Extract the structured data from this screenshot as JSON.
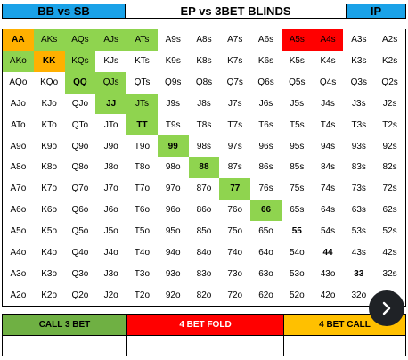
{
  "header": {
    "left": "BB vs SB",
    "title": "EP vs 3BET BLINDS",
    "right": "IP"
  },
  "grid": [
    [
      {
        "t": "AA",
        "c": "fourcall",
        "b": true
      },
      {
        "t": "AKs",
        "c": "call"
      },
      {
        "t": "AQs",
        "c": "call"
      },
      {
        "t": "AJs",
        "c": "call"
      },
      {
        "t": "ATs",
        "c": "call"
      },
      {
        "t": "A9s"
      },
      {
        "t": "A8s"
      },
      {
        "t": "A7s"
      },
      {
        "t": "A6s"
      },
      {
        "t": "A5s",
        "c": "fold"
      },
      {
        "t": "A4s",
        "c": "fold"
      },
      {
        "t": "A3s"
      },
      {
        "t": "A2s"
      }
    ],
    [
      {
        "t": "AKo",
        "c": "call"
      },
      {
        "t": "KK",
        "c": "fourcall",
        "b": true
      },
      {
        "t": "KQs",
        "c": "call"
      },
      {
        "t": "KJs"
      },
      {
        "t": "KTs"
      },
      {
        "t": "K9s"
      },
      {
        "t": "K8s"
      },
      {
        "t": "K7s"
      },
      {
        "t": "K6s"
      },
      {
        "t": "K5s"
      },
      {
        "t": "K4s"
      },
      {
        "t": "K3s"
      },
      {
        "t": "K2s"
      }
    ],
    [
      {
        "t": "AQo"
      },
      {
        "t": "KQo"
      },
      {
        "t": "QQ",
        "c": "call",
        "b": true
      },
      {
        "t": "QJs",
        "c": "call"
      },
      {
        "t": "QTs"
      },
      {
        "t": "Q9s"
      },
      {
        "t": "Q8s"
      },
      {
        "t": "Q7s"
      },
      {
        "t": "Q6s"
      },
      {
        "t": "Q5s"
      },
      {
        "t": "Q4s"
      },
      {
        "t": "Q3s"
      },
      {
        "t": "Q2s"
      }
    ],
    [
      {
        "t": "AJo"
      },
      {
        "t": "KJo"
      },
      {
        "t": "QJo"
      },
      {
        "t": "JJ",
        "c": "call",
        "b": true
      },
      {
        "t": "JTs",
        "c": "call"
      },
      {
        "t": "J9s"
      },
      {
        "t": "J8s"
      },
      {
        "t": "J7s"
      },
      {
        "t": "J6s"
      },
      {
        "t": "J5s"
      },
      {
        "t": "J4s"
      },
      {
        "t": "J3s"
      },
      {
        "t": "J2s"
      }
    ],
    [
      {
        "t": "ATo"
      },
      {
        "t": "KTo"
      },
      {
        "t": "QTo"
      },
      {
        "t": "JTo"
      },
      {
        "t": "TT",
        "c": "call",
        "b": true
      },
      {
        "t": "T9s"
      },
      {
        "t": "T8s"
      },
      {
        "t": "T7s"
      },
      {
        "t": "T6s"
      },
      {
        "t": "T5s"
      },
      {
        "t": "T4s"
      },
      {
        "t": "T3s"
      },
      {
        "t": "T2s"
      }
    ],
    [
      {
        "t": "A9o"
      },
      {
        "t": "K9o"
      },
      {
        "t": "Q9o"
      },
      {
        "t": "J9o"
      },
      {
        "t": "T9o"
      },
      {
        "t": "99",
        "c": "call",
        "b": true
      },
      {
        "t": "98s"
      },
      {
        "t": "97s"
      },
      {
        "t": "96s"
      },
      {
        "t": "95s"
      },
      {
        "t": "94s"
      },
      {
        "t": "93s"
      },
      {
        "t": "92s"
      }
    ],
    [
      {
        "t": "A8o"
      },
      {
        "t": "K8o"
      },
      {
        "t": "Q8o"
      },
      {
        "t": "J8o"
      },
      {
        "t": "T8o"
      },
      {
        "t": "98o"
      },
      {
        "t": "88",
        "c": "call",
        "b": true
      },
      {
        "t": "87s"
      },
      {
        "t": "86s"
      },
      {
        "t": "85s"
      },
      {
        "t": "84s"
      },
      {
        "t": "83s"
      },
      {
        "t": "82s"
      }
    ],
    [
      {
        "t": "A7o"
      },
      {
        "t": "K7o"
      },
      {
        "t": "Q7o"
      },
      {
        "t": "J7o"
      },
      {
        "t": "T7o"
      },
      {
        "t": "97o"
      },
      {
        "t": "87o"
      },
      {
        "t": "77",
        "c": "call",
        "b": true
      },
      {
        "t": "76s"
      },
      {
        "t": "75s"
      },
      {
        "t": "74s"
      },
      {
        "t": "73s"
      },
      {
        "t": "72s"
      }
    ],
    [
      {
        "t": "A6o"
      },
      {
        "t": "K6o"
      },
      {
        "t": "Q6o"
      },
      {
        "t": "J6o"
      },
      {
        "t": "T6o"
      },
      {
        "t": "96o"
      },
      {
        "t": "86o"
      },
      {
        "t": "76o"
      },
      {
        "t": "66",
        "c": "call",
        "b": true
      },
      {
        "t": "65s"
      },
      {
        "t": "64s"
      },
      {
        "t": "63s"
      },
      {
        "t": "62s"
      }
    ],
    [
      {
        "t": "A5o"
      },
      {
        "t": "K5o"
      },
      {
        "t": "Q5o"
      },
      {
        "t": "J5o"
      },
      {
        "t": "T5o"
      },
      {
        "t": "95o"
      },
      {
        "t": "85o"
      },
      {
        "t": "75o"
      },
      {
        "t": "65o"
      },
      {
        "t": "55",
        "b": true
      },
      {
        "t": "54s"
      },
      {
        "t": "53s"
      },
      {
        "t": "52s"
      }
    ],
    [
      {
        "t": "A4o"
      },
      {
        "t": "K4o"
      },
      {
        "t": "Q4o"
      },
      {
        "t": "J4o"
      },
      {
        "t": "T4o"
      },
      {
        "t": "94o"
      },
      {
        "t": "84o"
      },
      {
        "t": "74o"
      },
      {
        "t": "64o"
      },
      {
        "t": "54o"
      },
      {
        "t": "44",
        "b": true
      },
      {
        "t": "43s"
      },
      {
        "t": "42s"
      }
    ],
    [
      {
        "t": "A3o"
      },
      {
        "t": "K3o"
      },
      {
        "t": "Q3o"
      },
      {
        "t": "J3o"
      },
      {
        "t": "T3o"
      },
      {
        "t": "93o"
      },
      {
        "t": "83o"
      },
      {
        "t": "73o"
      },
      {
        "t": "63o"
      },
      {
        "t": "53o"
      },
      {
        "t": "43o"
      },
      {
        "t": "33",
        "b": true
      },
      {
        "t": "32s"
      }
    ],
    [
      {
        "t": "A2o"
      },
      {
        "t": "K2o"
      },
      {
        "t": "Q2o"
      },
      {
        "t": "J2o"
      },
      {
        "t": "T2o"
      },
      {
        "t": "92o"
      },
      {
        "t": "82o"
      },
      {
        "t": "72o"
      },
      {
        "t": "62o"
      },
      {
        "t": "52o"
      },
      {
        "t": "42o"
      },
      {
        "t": "32o"
      },
      {
        "t": "22",
        "b": true
      }
    ]
  ],
  "legend": {
    "call_3bet": "CALL 3 BET",
    "fourbet_fold": "4 BET FOLD",
    "fourbet_call": "4 BET CALL"
  },
  "colors": {
    "header_blue": "#1aa2e8",
    "call": "#8fd44f",
    "fold": "#ff0000",
    "fourbet_call": "#ffb000"
  },
  "next_button": {
    "icon": "chevron-right-icon"
  }
}
